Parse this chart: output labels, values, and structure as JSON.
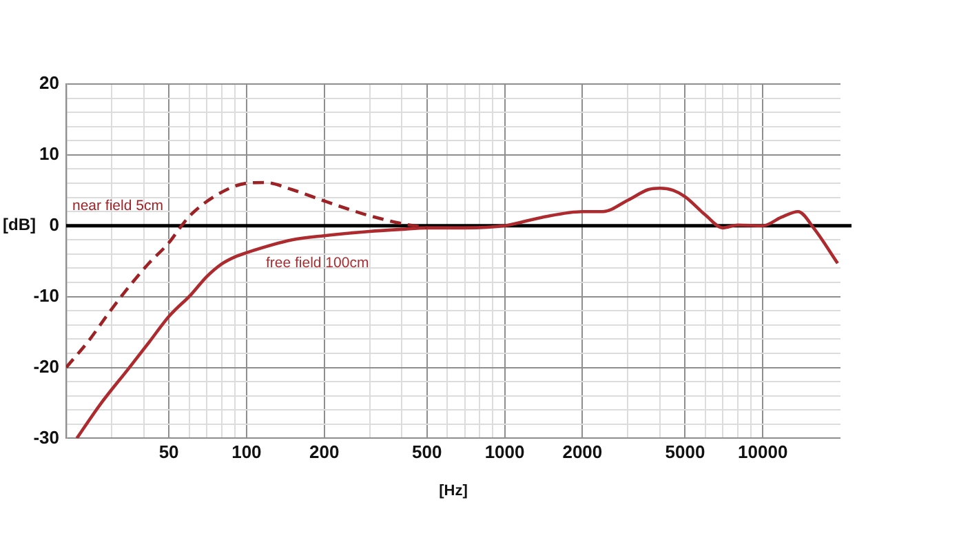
{
  "chart_data": {
    "type": "line",
    "xlabel": "[Hz]",
    "ylabel": "[dB]",
    "log": "x",
    "xlim": [
      20,
      20000
    ],
    "xticks": [
      {
        "value": 30,
        "label": null
      },
      {
        "value": 40,
        "label": null
      },
      50,
      {
        "value": 60,
        "label": null
      },
      {
        "value": 70,
        "label": null
      },
      {
        "value": 80,
        "label": null
      },
      {
        "value": 90,
        "label": null
      },
      100,
      200,
      {
        "value": 300,
        "label": null
      },
      {
        "value": 400,
        "label": null
      },
      500,
      {
        "value": 600,
        "label": null
      },
      {
        "value": 700,
        "label": null
      },
      {
        "value": 800,
        "label": null
      },
      {
        "value": 900,
        "label": null
      },
      1000,
      2000,
      {
        "value": 3000,
        "label": null
      },
      {
        "value": 4000,
        "label": null
      },
      5000,
      {
        "value": 6000,
        "label": null
      },
      {
        "value": 7000,
        "label": null
      },
      {
        "value": 8000,
        "label": null
      },
      {
        "value": 9000,
        "label": null
      },
      10000
    ],
    "ylim": [
      -30,
      20
    ],
    "yticks": [
      -30,
      {
        "value": -28,
        "label": null
      },
      {
        "value": -26,
        "label": null
      },
      {
        "value": -24,
        "label": null
      },
      {
        "value": -22,
        "label": null
      },
      -20,
      {
        "value": -18,
        "label": null
      },
      {
        "value": -16,
        "label": null
      },
      {
        "value": -14,
        "label": null
      },
      {
        "value": -12,
        "label": null
      },
      -10,
      {
        "value": -8,
        "label": null
      },
      {
        "value": -6,
        "label": null
      },
      {
        "value": -4,
        "label": null
      },
      {
        "value": -2,
        "label": null
      },
      0,
      {
        "value": 2,
        "label": null
      },
      {
        "value": 4,
        "label": null
      },
      {
        "value": 6,
        "label": null
      },
      {
        "value": 8,
        "label": null
      },
      10,
      {
        "value": 12,
        "label": null
      },
      {
        "value": 14,
        "label": null
      },
      {
        "value": 16,
        "label": null
      },
      {
        "value": 18,
        "label": null
      },
      20
    ],
    "grid": true,
    "marker": "none",
    "ref_lines": [
      {
        "axis": "y",
        "value": 0,
        "color": "#000000"
      }
    ],
    "series": [
      {
        "name": "near field 5cm",
        "color": "#9c2226",
        "line_style": "dashed",
        "x": [
          20,
          24.5,
          29.4,
          34,
          41.6,
          50,
          56,
          61,
          78,
          100,
          118,
          150,
          200,
          250,
          300,
          400,
          500
        ],
        "values": [
          -20,
          -16.2,
          -12.2,
          -9.2,
          -5.4,
          -2.4,
          0,
          1.6,
          4.5,
          6.0,
          6.1,
          5.1,
          3.5,
          2.3,
          1.4,
          0.3,
          -0.3
        ]
      },
      {
        "name": "free field 100cm",
        "color": "#ad2b2f",
        "line_style": "solid",
        "x": [
          22,
          27,
          35,
          42,
          50,
          61,
          70,
          80,
          90,
          100,
          150,
          200,
          300,
          400,
          500,
          700,
          1000,
          1400,
          2000,
          2400,
          3000,
          3600,
          4000,
          4500,
          5000,
          6000,
          7000,
          8000,
          10000,
          11800,
          13700,
          15800,
          19500
        ],
        "values": [
          -30,
          -25.3,
          -20.1,
          -16.4,
          -12.8,
          -9.7,
          -7.2,
          -5.4,
          -4.4,
          -3.8,
          -2.0,
          -1.4,
          -0.8,
          -0.5,
          -0.3,
          -0.3,
          0,
          1.2,
          2.0,
          2.0,
          3.6,
          5.1,
          5.3,
          5.0,
          4.1,
          1.5,
          -0.3,
          0.1,
          0,
          1.2,
          2.0,
          -0.4,
          -5.3
        ]
      }
    ]
  }
}
